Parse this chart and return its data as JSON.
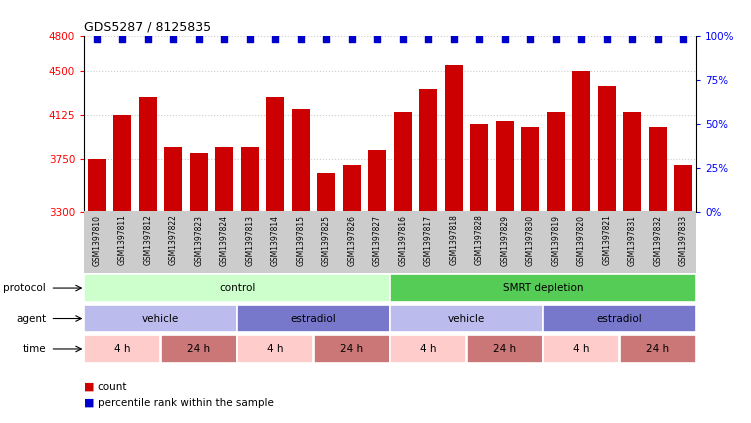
{
  "title": "GDS5287 / 8125835",
  "samples": [
    "GSM1397810",
    "GSM1397811",
    "GSM1397812",
    "GSM1397822",
    "GSM1397823",
    "GSM1397824",
    "GSM1397813",
    "GSM1397814",
    "GSM1397815",
    "GSM1397825",
    "GSM1397826",
    "GSM1397827",
    "GSM1397816",
    "GSM1397817",
    "GSM1397818",
    "GSM1397828",
    "GSM1397829",
    "GSM1397830",
    "GSM1397819",
    "GSM1397820",
    "GSM1397821",
    "GSM1397831",
    "GSM1397832",
    "GSM1397833"
  ],
  "counts": [
    3750,
    4125,
    4275,
    3850,
    3800,
    3850,
    3850,
    4275,
    4175,
    3625,
    3700,
    3825,
    4150,
    4350,
    4550,
    4050,
    4075,
    4025,
    4150,
    4500,
    4375,
    4150,
    4025,
    3700
  ],
  "bar_color": "#cc0000",
  "percentile_color": "#0000cc",
  "ylim_left": [
    3300,
    4800
  ],
  "ylim_right": [
    0,
    100
  ],
  "yticks_left": [
    3300,
    3750,
    4125,
    4500,
    4800
  ],
  "yticks_right": [
    0,
    25,
    50,
    75,
    100
  ],
  "hlines": [
    3750,
    4125,
    4500,
    4800
  ],
  "protocol_groups": [
    {
      "label": "control",
      "start": 0,
      "end": 12,
      "color": "#ccffcc"
    },
    {
      "label": "SMRT depletion",
      "start": 12,
      "end": 24,
      "color": "#55cc55"
    }
  ],
  "agent_groups": [
    {
      "label": "vehicle",
      "start": 0,
      "end": 6,
      "color": "#bbbbee"
    },
    {
      "label": "estradiol",
      "start": 6,
      "end": 12,
      "color": "#7777cc"
    },
    {
      "label": "vehicle",
      "start": 12,
      "end": 18,
      "color": "#bbbbee"
    },
    {
      "label": "estradiol",
      "start": 18,
      "end": 24,
      "color": "#7777cc"
    }
  ],
  "time_groups": [
    {
      "label": "4 h",
      "start": 0,
      "end": 3,
      "color": "#ffcccc"
    },
    {
      "label": "24 h",
      "start": 3,
      "end": 6,
      "color": "#cc7777"
    },
    {
      "label": "4 h",
      "start": 6,
      "end": 9,
      "color": "#ffcccc"
    },
    {
      "label": "24 h",
      "start": 9,
      "end": 12,
      "color": "#cc7777"
    },
    {
      "label": "4 h",
      "start": 12,
      "end": 15,
      "color": "#ffcccc"
    },
    {
      "label": "24 h",
      "start": 15,
      "end": 18,
      "color": "#cc7777"
    },
    {
      "label": "4 h",
      "start": 18,
      "end": 21,
      "color": "#ffcccc"
    },
    {
      "label": "24 h",
      "start": 21,
      "end": 24,
      "color": "#cc7777"
    }
  ],
  "xtick_bg": "#cccccc",
  "bg_color": "#ffffff",
  "grid_color": "#cccccc",
  "row_labels": [
    "protocol",
    "agent",
    "time"
  ],
  "legend_count_label": "count",
  "legend_pct_label": "percentile rank within the sample"
}
